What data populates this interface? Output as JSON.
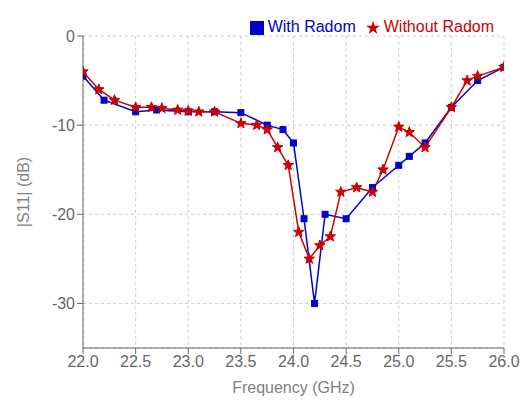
{
  "chart_data": {
    "type": "line",
    "xlabel": "Frequency (GHz)",
    "ylabel": "|S11| (dB)",
    "xlim": [
      22.0,
      26.0
    ],
    "ylim": [
      -35,
      0
    ],
    "xticks": [
      {
        "value": 22.0,
        "label": "22.0"
      },
      {
        "value": 22.5,
        "label": "22.5"
      },
      {
        "value": 23.0,
        "label": "23.0"
      },
      {
        "value": 23.5,
        "label": "23.5"
      },
      {
        "value": 24.0,
        "label": "24.0"
      },
      {
        "value": 24.5,
        "label": "24.5"
      },
      {
        "value": 25.0,
        "label": "25.0"
      },
      {
        "value": 25.5,
        "label": "25.5"
      },
      {
        "value": 26.0,
        "label": "26.0"
      }
    ],
    "yticks": [
      0,
      -10,
      -20,
      -30
    ],
    "grid": true,
    "legend": "upper right",
    "series": [
      {
        "name": "With Radom",
        "color": "#0000cc",
        "marker": "square",
        "x": [
          22.0,
          22.2,
          22.5,
          22.7,
          23.0,
          23.25,
          23.5,
          23.75,
          23.9,
          24.0,
          24.1,
          24.2,
          24.3,
          24.5,
          24.75,
          25.0,
          25.1,
          25.25,
          25.5,
          25.75,
          26.0
        ],
        "values": [
          -4.5,
          -7.2,
          -8.5,
          -8.3,
          -8.5,
          -8.5,
          -8.6,
          -10.0,
          -10.5,
          -12.0,
          -20.5,
          -30.0,
          -20.0,
          -20.5,
          -17.0,
          -14.5,
          -13.5,
          -12.0,
          -8.0,
          -5.0,
          -3.5
        ]
      },
      {
        "name": "Without Radom",
        "color": "#cc0000",
        "marker": "star",
        "x": [
          22.0,
          22.15,
          22.3,
          22.5,
          22.65,
          22.75,
          22.9,
          23.0,
          23.1,
          23.25,
          23.5,
          23.65,
          23.75,
          23.85,
          23.95,
          24.05,
          24.15,
          24.25,
          24.35,
          24.45,
          24.6,
          24.75,
          24.85,
          25.0,
          25.1,
          25.25,
          25.5,
          25.65,
          25.75,
          26.0
        ],
        "values": [
          -4.0,
          -6.0,
          -7.2,
          -8.0,
          -8.0,
          -8.1,
          -8.3,
          -8.4,
          -8.5,
          -8.5,
          -9.8,
          -10.0,
          -10.5,
          -12.5,
          -14.5,
          -22.0,
          -25.0,
          -23.5,
          -22.5,
          -17.5,
          -17.0,
          -17.5,
          -15.0,
          -10.2,
          -10.8,
          -12.5,
          -8.0,
          -5.0,
          -4.5,
          -3.5
        ]
      }
    ]
  }
}
